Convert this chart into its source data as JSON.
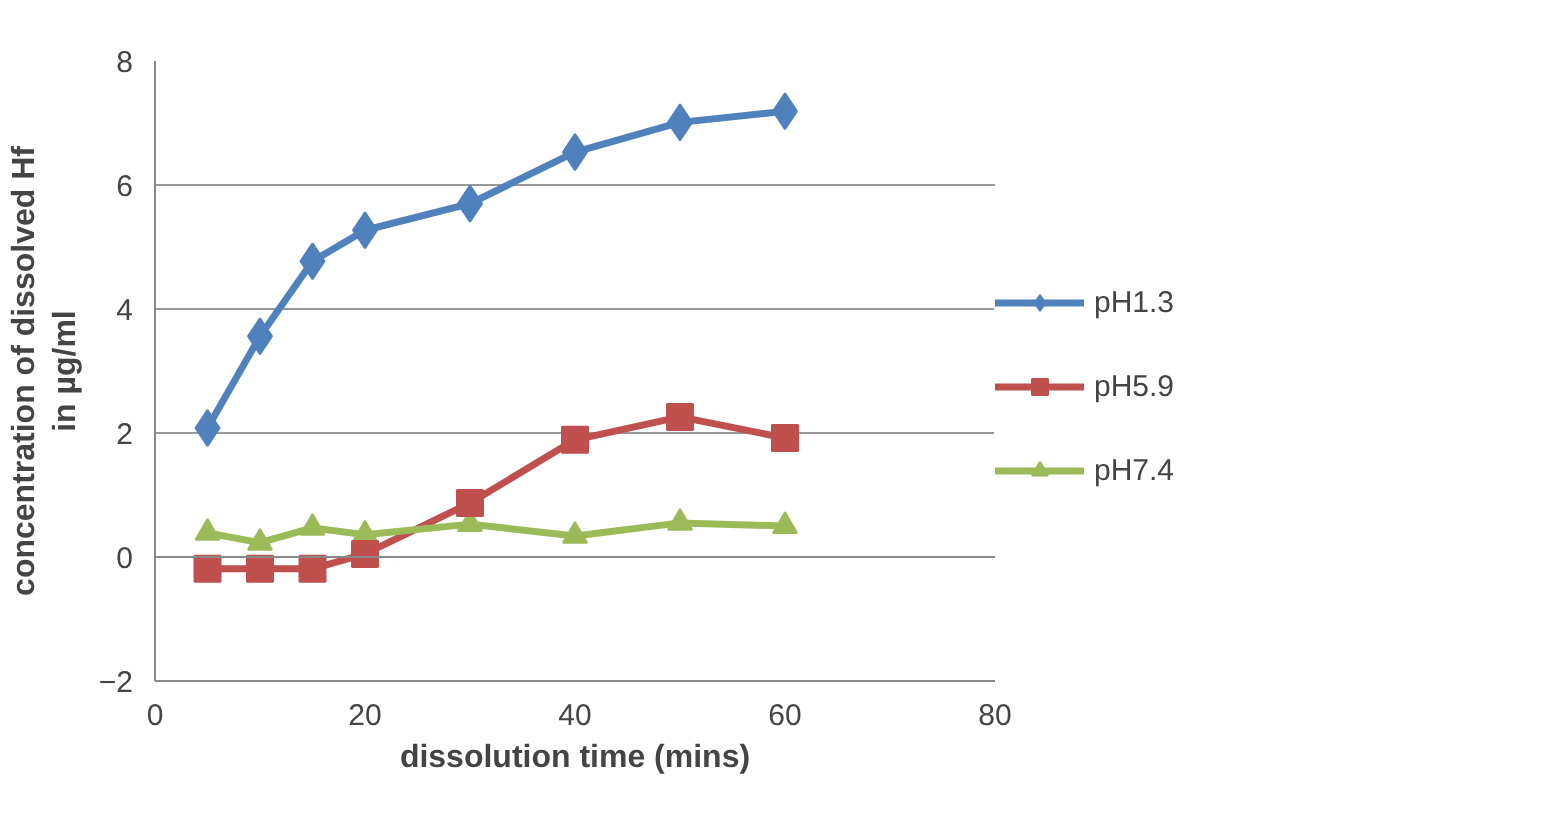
{
  "chart_data": {
    "type": "line",
    "xlabel": "dissolution time (mins)",
    "ylabel": "concentration of dissolved Hf in µg/ml",
    "x": [
      5,
      10,
      15,
      20,
      30,
      40,
      50,
      60
    ],
    "series": [
      {
        "name": "pH1.3",
        "color": "#4f81bd",
        "marker": "diamond",
        "values": [
          2.08,
          3.56,
          4.77,
          5.27,
          5.7,
          6.53,
          7.01,
          7.19
        ]
      },
      {
        "name": "pH5.9",
        "color": "#c0504d",
        "marker": "square",
        "values": [
          -0.19,
          -0.19,
          -0.19,
          0.05,
          0.87,
          1.89,
          2.26,
          1.92
        ]
      },
      {
        "name": "pH7.4",
        "color": "#9bbb59",
        "marker": "triangle",
        "values": [
          0.39,
          0.23,
          0.47,
          0.36,
          0.53,
          0.34,
          0.55,
          0.5
        ]
      }
    ],
    "xlim": [
      0,
      80
    ],
    "xticks": [
      0,
      20,
      40,
      60,
      80
    ],
    "ylim": [
      -2,
      8
    ],
    "yticks": [
      -2,
      0,
      2,
      4,
      6,
      8
    ],
    "grid": "y",
    "legend": "right",
    "line_style": "solid"
  }
}
